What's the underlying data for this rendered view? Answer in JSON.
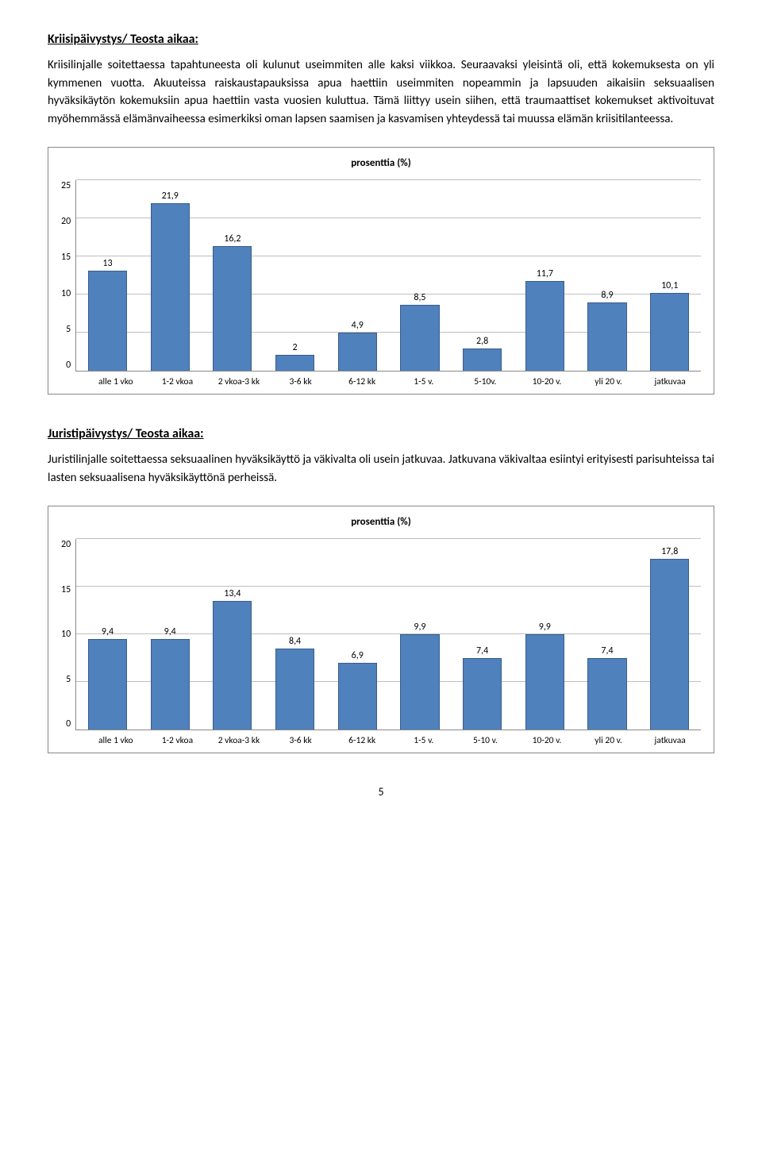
{
  "section1": {
    "heading": "Kriisipäivystys/ Teosta aikaa:",
    "paragraph": "Kriisilinjalle soitettaessa tapahtuneesta oli kulunut useimmiten alle kaksi viikkoa. Seuraavaksi yleisintä oli, että kokemuksesta on yli kymmenen vuotta. Akuuteissa raiskaustapauksissa apua haettiin useimmiten nopeammin ja lapsuuden aikaisiin seksuaalisen hyväksikäytön kokemuksiin apua haettiin vasta vuosien kuluttua. Tämä liittyy usein siihen, että traumaattiset kokemukset aktivoituvat myöhemmässä elämänvaiheessa esimerkiksi oman lapsen saamisen ja kasvamisen yhteydessä tai muussa elämän kriisitilanteessa."
  },
  "chart1": {
    "title": "prosenttia (%)",
    "categories": [
      "alle 1 vko",
      "1-2 vkoa",
      "2 vkoa-3 kk",
      "3-6 kk",
      "6-12 kk",
      "1-5 v.",
      "5-10v.",
      "10-20 v.",
      "yli 20 v.",
      "jatkuvaa"
    ],
    "values": [
      13,
      21.9,
      16.2,
      2,
      4.9,
      8.5,
      2.8,
      11.7,
      8.9,
      10.1
    ],
    "value_labels": [
      "13",
      "21,9",
      "16,2",
      "2",
      "4,9",
      "8,5",
      "2,8",
      "11,7",
      "8,9",
      "10,1"
    ],
    "ymax": 25,
    "ytick_step": 5,
    "yticks": [
      "25",
      "20",
      "15",
      "10",
      "5",
      "0"
    ],
    "bar_color": "#4f81bd",
    "bar_border": "#385d8a",
    "grid_color": "#bfbfbf"
  },
  "section2": {
    "heading": "Juristipäivystys/ Teosta aikaa:",
    "paragraph": "Juristilinjalle soitettaessa seksuaalinen hyväksikäyttö ja väkivalta oli usein jatkuvaa. Jatkuvana väkivaltaa esiintyi erityisesti parisuhteissa tai lasten seksuaalisena hyväksikäyttönä perheissä."
  },
  "chart2": {
    "title": "prosenttia (%)",
    "categories": [
      "alle 1 vko",
      "1-2 vkoa",
      "2 vkoa-3 kk",
      "3-6 kk",
      "6-12 kk",
      "1-5 v.",
      "5-10 v.",
      "10-20 v.",
      "yli 20 v.",
      "jatkuvaa"
    ],
    "values": [
      9.4,
      9.4,
      13.4,
      8.4,
      6.9,
      9.9,
      7.4,
      9.9,
      7.4,
      17.8
    ],
    "value_labels": [
      "9,4",
      "9,4",
      "13,4",
      "8,4",
      "6,9",
      "9,9",
      "7,4",
      "9,9",
      "7,4",
      "17,8"
    ],
    "ymax": 20,
    "ytick_step": 5,
    "yticks": [
      "20",
      "15",
      "10",
      "5",
      "0"
    ],
    "bar_color": "#4f81bd",
    "bar_border": "#385d8a",
    "grid_color": "#bfbfbf"
  },
  "page_number": "5"
}
